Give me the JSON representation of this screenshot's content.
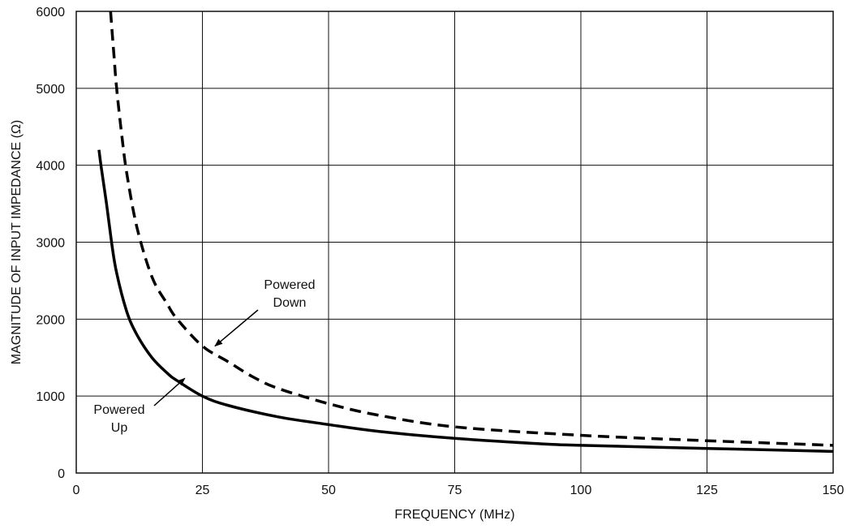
{
  "chart_data": {
    "type": "line",
    "title": "",
    "xlabel": "FREQUENCY (MHz)",
    "ylabel": "MAGNITUDE OF INPUT IMPEDANCE (Ω)",
    "xlim": [
      0,
      150
    ],
    "ylim": [
      0,
      6000
    ],
    "xticks": [
      0,
      25,
      50,
      75,
      100,
      125,
      150
    ],
    "yticks": [
      0,
      1000,
      2000,
      3000,
      4000,
      5000,
      6000
    ],
    "grid": true,
    "series": [
      {
        "name": "Powered Up",
        "style": "solid",
        "color": "#000000",
        "x": [
          4.5,
          5,
          6,
          7,
          8,
          10,
          12,
          15,
          18,
          20,
          25,
          30,
          40,
          50,
          60,
          75,
          92,
          100,
          125,
          150
        ],
        "y": [
          4200,
          3950,
          3500,
          3000,
          2600,
          2100,
          1800,
          1500,
          1300,
          1200,
          1000,
          880,
          730,
          630,
          540,
          450,
          380,
          360,
          320,
          280
        ]
      },
      {
        "name": "Powered Down",
        "style": "dashed",
        "color": "#000000",
        "x": [
          6.8,
          7.5,
          8,
          9,
          10,
          12,
          15,
          18,
          20,
          25,
          30,
          35,
          40,
          50,
          60,
          75,
          100,
          125,
          150
        ],
        "y": [
          6000,
          5400,
          5000,
          4400,
          3900,
          3200,
          2550,
          2200,
          2000,
          1650,
          1450,
          1250,
          1100,
          900,
          750,
          600,
          490,
          420,
          360
        ]
      }
    ],
    "annotations": [
      {
        "lines": [
          "Powered",
          "Down"
        ],
        "target_x": 27.5,
        "target_y": 1650
      },
      {
        "lines": [
          "Powered",
          "Up"
        ],
        "target_x": 21.5,
        "target_y": 1230
      }
    ]
  }
}
